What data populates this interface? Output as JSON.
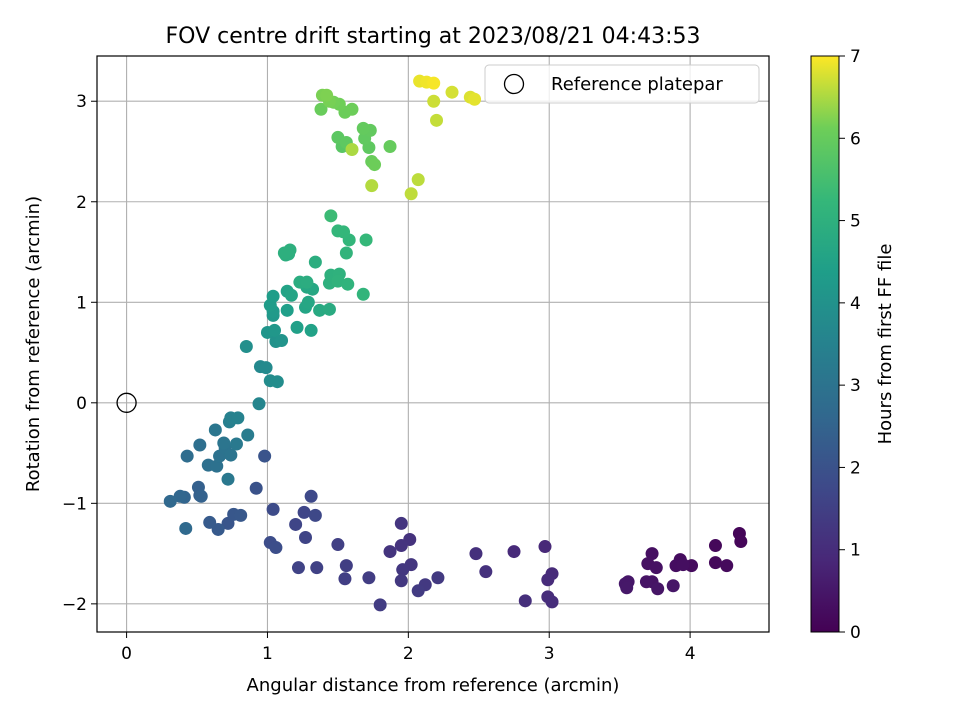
{
  "chart_data": {
    "type": "scatter",
    "title": "FOV centre drift starting at 2023/08/21 04:43:53",
    "xlabel": "Angular distance from reference (arcmin)",
    "ylabel": "Rotation from reference (arcmin)",
    "xlim": [
      -0.21,
      4.56
    ],
    "ylim": [
      -2.28,
      3.45
    ],
    "xticks": [
      0,
      1,
      2,
      3,
      4
    ],
    "xtick_labels": [
      "0",
      "1",
      "2",
      "3",
      "4"
    ],
    "yticks": [
      -2,
      -1,
      0,
      1,
      2,
      3
    ],
    "ytick_labels": [
      "−2",
      "−1",
      "0",
      "1",
      "2",
      "3"
    ],
    "grid": true,
    "legend": {
      "label": "Reference platepar",
      "position": "top-right",
      "marker": "open-circle"
    },
    "reference_point": {
      "x": 0,
      "y": 0
    },
    "colorbar": {
      "label": "Hours from first FF file",
      "colormap": "viridis",
      "min": 0,
      "max": 7,
      "ticks": [
        0,
        1,
        2,
        3,
        4,
        5,
        6,
        7
      ],
      "tick_labels": [
        "0",
        "1",
        "2",
        "3",
        "4",
        "5",
        "6",
        "7"
      ]
    },
    "points": [
      {
        "x": 4.35,
        "y": -1.3,
        "h": 0.1
      },
      {
        "x": 4.36,
        "y": -1.38,
        "h": 0.12
      },
      {
        "x": 4.18,
        "y": -1.42,
        "h": 0.15
      },
      {
        "x": 4.18,
        "y": -1.59,
        "h": 0.18
      },
      {
        "x": 4.26,
        "y": -1.62,
        "h": 0.2
      },
      {
        "x": 4.01,
        "y": -1.62,
        "h": 0.22
      },
      {
        "x": 3.93,
        "y": -1.56,
        "h": 0.25
      },
      {
        "x": 3.9,
        "y": -1.62,
        "h": 0.28
      },
      {
        "x": 3.95,
        "y": -1.61,
        "h": 0.3
      },
      {
        "x": 3.73,
        "y": -1.5,
        "h": 0.32
      },
      {
        "x": 3.7,
        "y": -1.6,
        "h": 0.35
      },
      {
        "x": 3.76,
        "y": -1.64,
        "h": 0.37
      },
      {
        "x": 3.73,
        "y": -1.78,
        "h": 0.4
      },
      {
        "x": 3.69,
        "y": -1.78,
        "h": 0.42
      },
      {
        "x": 3.77,
        "y": -1.85,
        "h": 0.44
      },
      {
        "x": 3.88,
        "y": -1.82,
        "h": 0.46
      },
      {
        "x": 3.56,
        "y": -1.78,
        "h": 0.48
      },
      {
        "x": 3.54,
        "y": -1.8,
        "h": 0.5
      },
      {
        "x": 3.55,
        "y": -1.84,
        "h": 0.52
      },
      {
        "x": 2.97,
        "y": -1.43,
        "h": 0.9
      },
      {
        "x": 2.75,
        "y": -1.48,
        "h": 0.92
      },
      {
        "x": 3.02,
        "y": -1.7,
        "h": 0.95
      },
      {
        "x": 2.99,
        "y": -1.76,
        "h": 0.97
      },
      {
        "x": 2.99,
        "y": -1.93,
        "h": 1.0
      },
      {
        "x": 3.02,
        "y": -1.98,
        "h": 1.02
      },
      {
        "x": 2.83,
        "y": -1.97,
        "h": 1.05
      },
      {
        "x": 2.48,
        "y": -1.5,
        "h": 1.1
      },
      {
        "x": 2.55,
        "y": -1.68,
        "h": 1.12
      },
      {
        "x": 2.01,
        "y": -1.36,
        "h": 1.15
      },
      {
        "x": 1.95,
        "y": -1.42,
        "h": 1.17
      },
      {
        "x": 1.87,
        "y": -1.48,
        "h": 1.2
      },
      {
        "x": 1.95,
        "y": -1.2,
        "h": 1.22
      },
      {
        "x": 2.02,
        "y": -1.61,
        "h": 1.25
      },
      {
        "x": 1.96,
        "y": -1.66,
        "h": 1.27
      },
      {
        "x": 1.95,
        "y": -1.77,
        "h": 1.3
      },
      {
        "x": 2.12,
        "y": -1.81,
        "h": 1.32
      },
      {
        "x": 2.21,
        "y": -1.74,
        "h": 1.35
      },
      {
        "x": 2.07,
        "y": -1.87,
        "h": 1.37
      },
      {
        "x": 1.8,
        "y": -2.01,
        "h": 1.4
      },
      {
        "x": 1.72,
        "y": -1.74,
        "h": 1.42
      },
      {
        "x": 1.56,
        "y": -1.62,
        "h": 1.45
      },
      {
        "x": 1.55,
        "y": -1.75,
        "h": 1.47
      },
      {
        "x": 1.5,
        "y": -1.41,
        "h": 1.5
      },
      {
        "x": 1.35,
        "y": -1.64,
        "h": 1.55
      },
      {
        "x": 1.22,
        "y": -1.64,
        "h": 1.58
      },
      {
        "x": 1.27,
        "y": -1.34,
        "h": 1.62
      },
      {
        "x": 1.2,
        "y": -1.21,
        "h": 1.65
      },
      {
        "x": 1.26,
        "y": -1.09,
        "h": 1.68
      },
      {
        "x": 1.34,
        "y": -1.12,
        "h": 1.72
      },
      {
        "x": 1.31,
        "y": -0.93,
        "h": 1.75
      },
      {
        "x": 1.04,
        "y": -1.06,
        "h": 1.8
      },
      {
        "x": 1.02,
        "y": -1.39,
        "h": 1.85
      },
      {
        "x": 1.06,
        "y": -1.44,
        "h": 1.88
      },
      {
        "x": 0.92,
        "y": -0.85,
        "h": 2.0
      },
      {
        "x": 0.98,
        "y": -0.53,
        "h": 2.05
      },
      {
        "x": 0.72,
        "y": -1.2,
        "h": 2.1
      },
      {
        "x": 0.76,
        "y": -1.11,
        "h": 2.15
      },
      {
        "x": 0.81,
        "y": -1.12,
        "h": 2.18
      },
      {
        "x": 0.65,
        "y": -1.26,
        "h": 2.22
      },
      {
        "x": 0.59,
        "y": -1.19,
        "h": 2.25
      },
      {
        "x": 0.52,
        "y": -0.92,
        "h": 2.35
      },
      {
        "x": 0.51,
        "y": -0.84,
        "h": 2.4
      },
      {
        "x": 0.53,
        "y": -0.93,
        "h": 2.45
      },
      {
        "x": 0.41,
        "y": -0.94,
        "h": 2.55
      },
      {
        "x": 0.38,
        "y": -0.93,
        "h": 2.6
      },
      {
        "x": 0.31,
        "y": -0.98,
        "h": 2.65
      },
      {
        "x": 0.42,
        "y": -1.25,
        "h": 2.7
      },
      {
        "x": 0.43,
        "y": -0.53,
        "h": 2.8
      },
      {
        "x": 0.52,
        "y": -0.42,
        "h": 2.85
      },
      {
        "x": 0.58,
        "y": -0.62,
        "h": 2.9
      },
      {
        "x": 0.64,
        "y": -0.63,
        "h": 2.93
      },
      {
        "x": 0.66,
        "y": -0.53,
        "h": 2.96
      },
      {
        "x": 0.7,
        "y": -0.45,
        "h": 3.0
      },
      {
        "x": 0.74,
        "y": -0.52,
        "h": 3.03
      },
      {
        "x": 0.69,
        "y": -0.4,
        "h": 3.06
      },
      {
        "x": 0.63,
        "y": -0.27,
        "h": 3.1
      },
      {
        "x": 0.72,
        "y": -0.76,
        "h": 3.15
      },
      {
        "x": 0.78,
        "y": -0.41,
        "h": 3.2
      },
      {
        "x": 0.86,
        "y": -0.32,
        "h": 3.3
      },
      {
        "x": 0.73,
        "y": -0.19,
        "h": 3.4
      },
      {
        "x": 0.74,
        "y": -0.15,
        "h": 3.45
      },
      {
        "x": 0.79,
        "y": -0.15,
        "h": 3.5
      },
      {
        "x": 0.94,
        "y": -0.01,
        "h": 3.6
      },
      {
        "x": 0.95,
        "y": 0.36,
        "h": 3.7
      },
      {
        "x": 0.99,
        "y": 0.35,
        "h": 3.75
      },
      {
        "x": 1.02,
        "y": 0.22,
        "h": 3.8
      },
      {
        "x": 1.07,
        "y": 0.21,
        "h": 3.85
      },
      {
        "x": 0.85,
        "y": 0.56,
        "h": 3.9
      },
      {
        "x": 1.06,
        "y": 0.61,
        "h": 4.0
      },
      {
        "x": 1.1,
        "y": 0.62,
        "h": 4.05
      },
      {
        "x": 1.0,
        "y": 0.7,
        "h": 4.1
      },
      {
        "x": 1.05,
        "y": 0.72,
        "h": 4.15
      },
      {
        "x": 1.04,
        "y": 0.87,
        "h": 4.2
      },
      {
        "x": 1.04,
        "y": 0.91,
        "h": 4.25
      },
      {
        "x": 1.02,
        "y": 0.97,
        "h": 4.3
      },
      {
        "x": 1.04,
        "y": 1.06,
        "h": 4.35
      },
      {
        "x": 1.14,
        "y": 0.92,
        "h": 4.4
      },
      {
        "x": 1.21,
        "y": 0.75,
        "h": 4.45
      },
      {
        "x": 1.31,
        "y": 0.72,
        "h": 4.5
      },
      {
        "x": 1.14,
        "y": 1.11,
        "h": 4.55
      },
      {
        "x": 1.17,
        "y": 1.07,
        "h": 4.6
      },
      {
        "x": 1.27,
        "y": 0.95,
        "h": 4.62
      },
      {
        "x": 1.29,
        "y": 1.0,
        "h": 4.65
      },
      {
        "x": 1.28,
        "y": 1.15,
        "h": 4.68
      },
      {
        "x": 1.32,
        "y": 1.13,
        "h": 4.7
      },
      {
        "x": 1.37,
        "y": 0.92,
        "h": 4.75
      },
      {
        "x": 1.44,
        "y": 0.93,
        "h": 4.8
      },
      {
        "x": 1.23,
        "y": 1.2,
        "h": 4.85
      },
      {
        "x": 1.28,
        "y": 1.2,
        "h": 4.88
      },
      {
        "x": 1.34,
        "y": 1.4,
        "h": 4.9
      },
      {
        "x": 1.13,
        "y": 1.47,
        "h": 4.92
      },
      {
        "x": 1.15,
        "y": 1.48,
        "h": 4.94
      },
      {
        "x": 1.16,
        "y": 1.52,
        "h": 4.96
      },
      {
        "x": 1.12,
        "y": 1.49,
        "h": 4.98
      },
      {
        "x": 1.44,
        "y": 1.19,
        "h": 5.0
      },
      {
        "x": 1.45,
        "y": 1.27,
        "h": 5.02
      },
      {
        "x": 1.51,
        "y": 1.28,
        "h": 5.05
      },
      {
        "x": 1.5,
        "y": 1.21,
        "h": 5.08
      },
      {
        "x": 1.57,
        "y": 1.18,
        "h": 5.1
      },
      {
        "x": 1.56,
        "y": 1.49,
        "h": 5.12
      },
      {
        "x": 1.68,
        "y": 1.08,
        "h": 5.15
      },
      {
        "x": 1.58,
        "y": 1.62,
        "h": 5.18
      },
      {
        "x": 1.5,
        "y": 1.71,
        "h": 5.2
      },
      {
        "x": 1.54,
        "y": 1.7,
        "h": 5.22
      },
      {
        "x": 1.7,
        "y": 1.62,
        "h": 5.25
      },
      {
        "x": 1.45,
        "y": 1.86,
        "h": 5.35
      },
      {
        "x": 1.53,
        "y": 2.55,
        "h": 5.8
      },
      {
        "x": 1.5,
        "y": 2.64,
        "h": 5.85
      },
      {
        "x": 1.56,
        "y": 2.59,
        "h": 5.88
      },
      {
        "x": 1.72,
        "y": 2.54,
        "h": 5.9
      },
      {
        "x": 1.69,
        "y": 2.63,
        "h": 5.92
      },
      {
        "x": 1.73,
        "y": 2.71,
        "h": 5.95
      },
      {
        "x": 1.68,
        "y": 2.73,
        "h": 5.97
      },
      {
        "x": 1.87,
        "y": 2.55,
        "h": 6.0
      },
      {
        "x": 1.74,
        "y": 2.4,
        "h": 6.05
      },
      {
        "x": 1.76,
        "y": 2.37,
        "h": 6.1
      },
      {
        "x": 1.38,
        "y": 2.92,
        "h": 6.05
      },
      {
        "x": 1.55,
        "y": 2.89,
        "h": 6.08
      },
      {
        "x": 1.6,
        "y": 2.92,
        "h": 6.1
      },
      {
        "x": 1.51,
        "y": 2.97,
        "h": 6.12
      },
      {
        "x": 1.47,
        "y": 2.99,
        "h": 6.15
      },
      {
        "x": 1.44,
        "y": 3.0,
        "h": 6.18
      },
      {
        "x": 1.39,
        "y": 3.06,
        "h": 6.2
      },
      {
        "x": 1.42,
        "y": 3.06,
        "h": 6.22
      },
      {
        "x": 1.6,
        "y": 2.52,
        "h": 6.5
      },
      {
        "x": 1.74,
        "y": 2.16,
        "h": 6.55
      },
      {
        "x": 2.07,
        "y": 2.22,
        "h": 6.6
      },
      {
        "x": 2.02,
        "y": 2.08,
        "h": 6.62
      },
      {
        "x": 2.2,
        "y": 2.81,
        "h": 6.65
      },
      {
        "x": 2.18,
        "y": 3.0,
        "h": 6.7
      },
      {
        "x": 2.31,
        "y": 3.09,
        "h": 6.75
      },
      {
        "x": 2.44,
        "y": 3.04,
        "h": 6.8
      },
      {
        "x": 2.47,
        "y": 3.02,
        "h": 6.85
      },
      {
        "x": 2.08,
        "y": 3.2,
        "h": 6.88
      },
      {
        "x": 2.13,
        "y": 3.19,
        "h": 6.92
      },
      {
        "x": 2.18,
        "y": 3.18,
        "h": 6.96
      }
    ]
  }
}
